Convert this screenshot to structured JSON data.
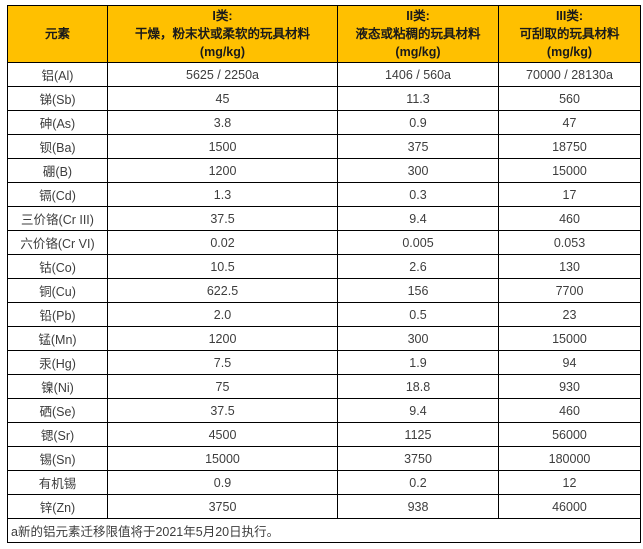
{
  "colors": {
    "header_bg": "#FFC000",
    "border": "#000000",
    "body_text": "#3d3d3d",
    "header_text": "#1a1a1a"
  },
  "table": {
    "header": {
      "element": "元素",
      "cols": [
        {
          "title": "I类:",
          "desc": "干燥，粉末状或柔软的玩具材料",
          "unit": "(mg/kg)"
        },
        {
          "title": "II类:",
          "desc": "液态或粘稠的玩具材料",
          "unit": "(mg/kg)"
        },
        {
          "title": "III类:",
          "desc": "可刮取的玩具材料",
          "unit": "(mg/kg)"
        }
      ]
    },
    "rows": [
      {
        "element": "铝(Al)",
        "values": [
          "5625 / 2250a",
          "1406 / 560a",
          "70000 / 28130a"
        ]
      },
      {
        "element": "锑(Sb)",
        "values": [
          "45",
          "11.3",
          "560"
        ]
      },
      {
        "element": "砷(As)",
        "values": [
          "3.8",
          "0.9",
          "47"
        ]
      },
      {
        "element": "钡(Ba)",
        "values": [
          "1500",
          "375",
          "18750"
        ]
      },
      {
        "element": "硼(B)",
        "values": [
          "1200",
          "300",
          "15000"
        ]
      },
      {
        "element": "镉(Cd)",
        "values": [
          "1.3",
          "0.3",
          "17"
        ]
      },
      {
        "element": "三价铬(Cr III)",
        "values": [
          "37.5",
          "9.4",
          "460"
        ]
      },
      {
        "element": "六价铬(Cr VI)",
        "values": [
          "0.02",
          "0.005",
          "0.053"
        ]
      },
      {
        "element": "钴(Co)",
        "values": [
          "10.5",
          "2.6",
          "130"
        ]
      },
      {
        "element": "铜(Cu)",
        "values": [
          "622.5",
          "156",
          "7700"
        ]
      },
      {
        "element": "铅(Pb)",
        "values": [
          "2.0",
          "0.5",
          "23"
        ]
      },
      {
        "element": "锰(Mn)",
        "values": [
          "1200",
          "300",
          "15000"
        ]
      },
      {
        "element": "汞(Hg)",
        "values": [
          "7.5",
          "1.9",
          "94"
        ]
      },
      {
        "element": "镍(Ni)",
        "values": [
          "75",
          "18.8",
          "930"
        ]
      },
      {
        "element": "硒(Se)",
        "values": [
          "37.5",
          "9.4",
          "460"
        ]
      },
      {
        "element": "锶(Sr)",
        "values": [
          "4500",
          "1125",
          "56000"
        ]
      },
      {
        "element": "锡(Sn)",
        "values": [
          "15000",
          "3750",
          "180000"
        ]
      },
      {
        "element": "有机锡",
        "values": [
          "0.9",
          "0.2",
          "12"
        ]
      },
      {
        "element": "锌(Zn)",
        "values": [
          "3750",
          "938",
          "46000"
        ]
      }
    ],
    "footnote": "a新的铝元素迁移限值将于2021年5月20日执行。"
  }
}
